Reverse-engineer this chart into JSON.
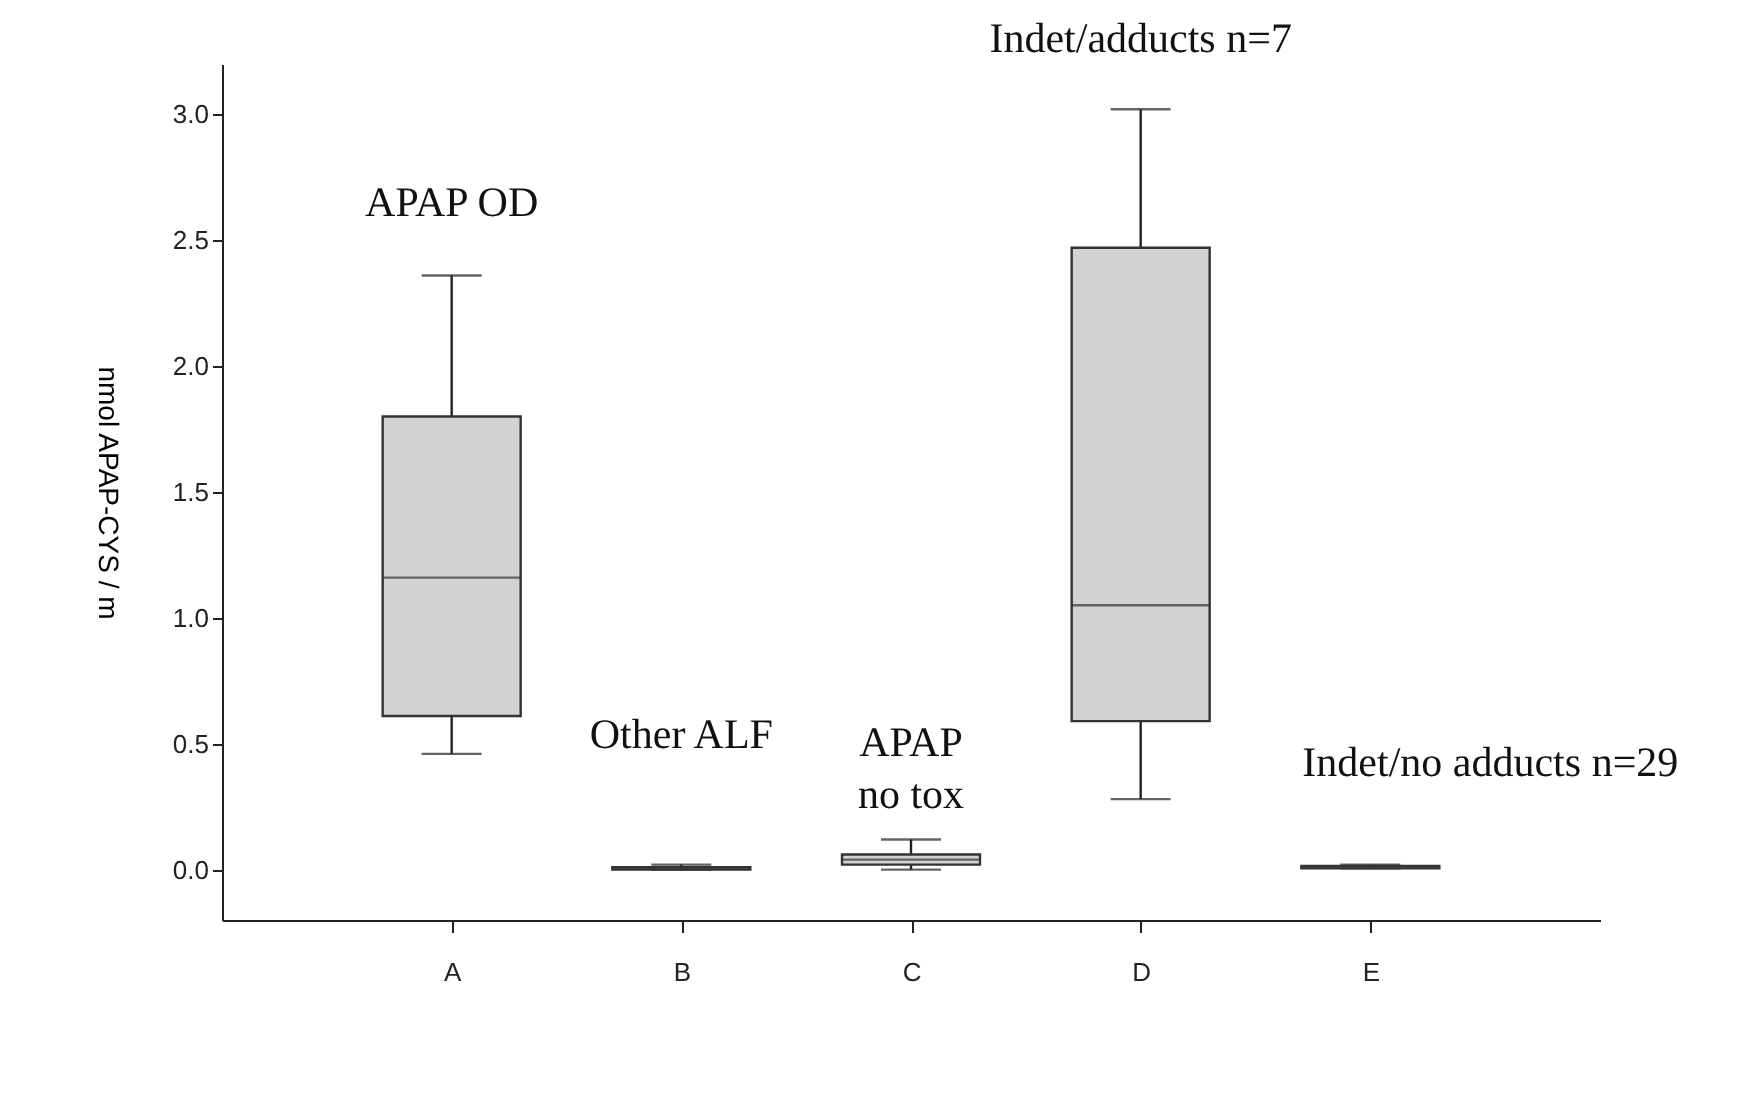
{
  "chart_data": {
    "type": "box",
    "ylabel": "nmol APAP-CYS / m",
    "categories": [
      "A",
      "B",
      "C",
      "D",
      "E"
    ],
    "boxes": [
      {
        "low": 0.46,
        "q1": 0.61,
        "median": 1.16,
        "q3": 1.8,
        "high": 2.36
      },
      {
        "low": 0.0,
        "q1": 0.0,
        "median": 0.005,
        "q3": 0.01,
        "high": 0.02
      },
      {
        "low": 0.0,
        "q1": 0.02,
        "median": 0.04,
        "q3": 0.06,
        "high": 0.12
      },
      {
        "low": 0.28,
        "q1": 0.59,
        "median": 1.05,
        "q3": 2.47,
        "high": 3.02
      },
      {
        "low": 0.005,
        "q1": 0.005,
        "median": 0.01,
        "q3": 0.015,
        "high": 0.02
      }
    ],
    "color": "#d3d3d3",
    "ylim": [
      -0.2,
      3.2
    ],
    "yticks": [
      {
        "value": 0,
        "label": "0.0"
      },
      0.5,
      {
        "value": 1,
        "label": "1.0"
      },
      1.5,
      {
        "value": 2,
        "label": "2.0"
      },
      2.5,
      {
        "value": 3,
        "label": "3.0"
      }
    ],
    "grid": false,
    "annotations": [
      "APAP OD",
      "Other ALF",
      "APAP\nno tox",
      "Indet/adducts n=7",
      "Indet/no adducts n=29"
    ]
  }
}
